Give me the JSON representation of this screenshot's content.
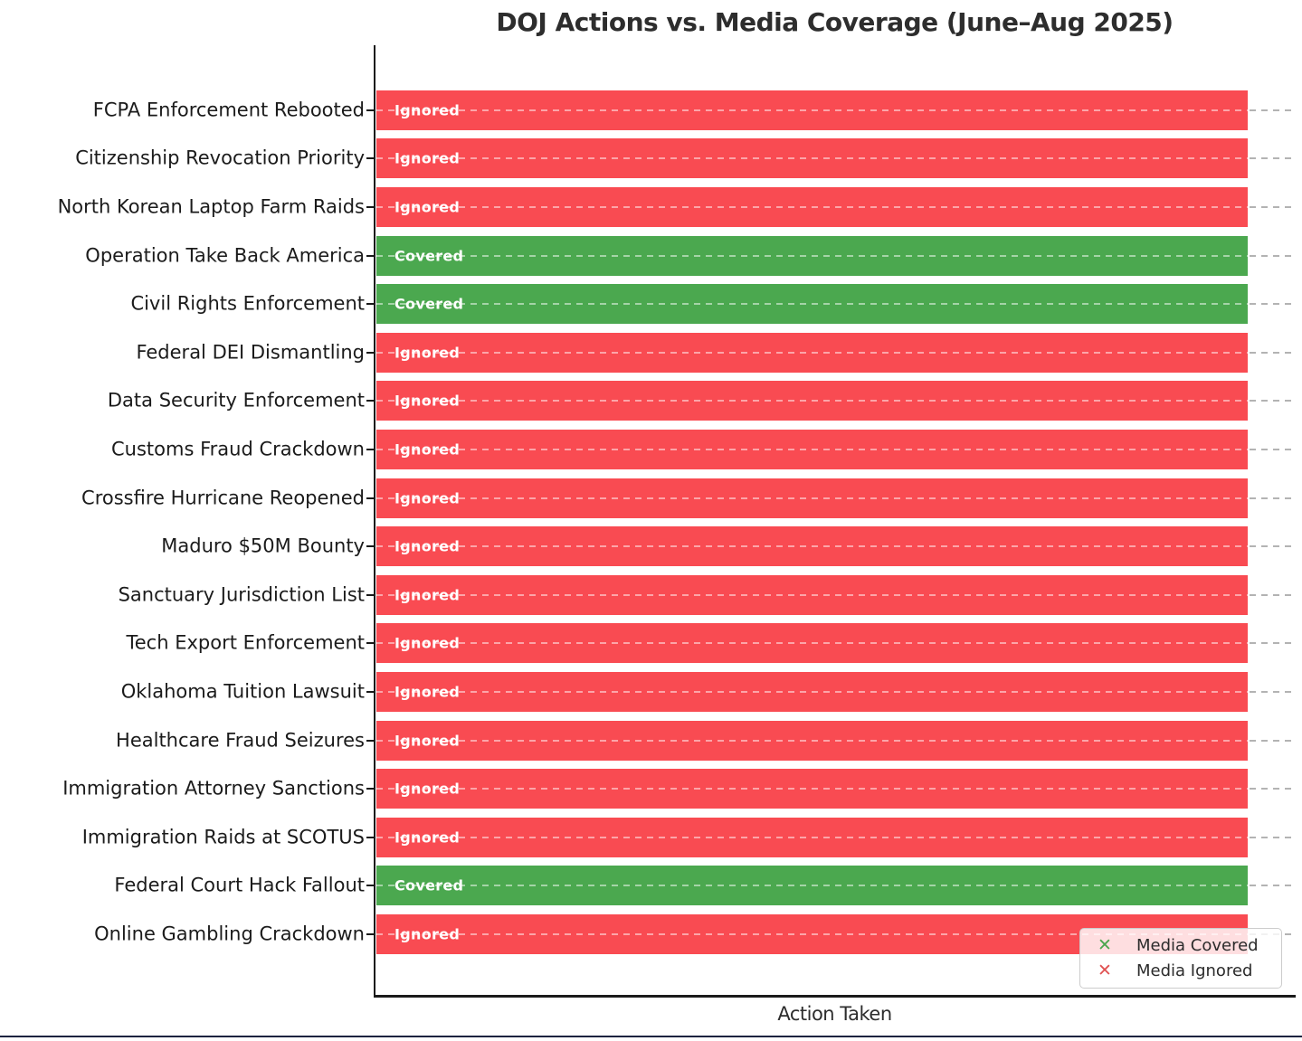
{
  "title": "DOJ Actions vs. Media Coverage (June–Aug 2025)",
  "xlabel": "Action Taken",
  "colors": {
    "covered": "#4ba84f",
    "ignored": "#f94b52",
    "legend_covered_marker": "#4aa64e",
    "legend_ignored_marker": "#e05252",
    "axis": "#1a1a1a",
    "gridline": "#b3b3b3",
    "bottom_edge": "#1c2340"
  },
  "legend": {
    "position": "lower right",
    "items": [
      {
        "label": "Media Covered",
        "marker": "x",
        "status": "covered"
      },
      {
        "label": "Media Ignored",
        "marker": "x",
        "status": "ignored"
      }
    ]
  },
  "chart_data": {
    "type": "bar",
    "orientation": "horizontal",
    "title": "DOJ Actions vs. Media Coverage (June–Aug 2025)",
    "xlabel": "Action Taken",
    "grid": "dashed horizontal lines per category",
    "legend_position": "lower right",
    "note": "All bars have equal length; color/label encode media coverage status",
    "bars": [
      {
        "category": "FCPA Enforcement Rebooted",
        "status": "Ignored",
        "value": 1
      },
      {
        "category": "Citizenship Revocation Priority",
        "status": "Ignored",
        "value": 1
      },
      {
        "category": "North Korean Laptop Farm Raids",
        "status": "Ignored",
        "value": 1
      },
      {
        "category": "Operation Take Back America",
        "status": "Covered",
        "value": 1
      },
      {
        "category": "Civil Rights Enforcement",
        "status": "Covered",
        "value": 1
      },
      {
        "category": "Federal DEI Dismantling",
        "status": "Ignored",
        "value": 1
      },
      {
        "category": "Data Security Enforcement",
        "status": "Ignored",
        "value": 1
      },
      {
        "category": "Customs Fraud Crackdown",
        "status": "Ignored",
        "value": 1
      },
      {
        "category": "Crossfire Hurricane Reopened",
        "status": "Ignored",
        "value": 1
      },
      {
        "category": "Maduro $50M Bounty",
        "status": "Ignored",
        "value": 1
      },
      {
        "category": "Sanctuary Jurisdiction List",
        "status": "Ignored",
        "value": 1
      },
      {
        "category": "Tech Export Enforcement",
        "status": "Ignored",
        "value": 1
      },
      {
        "category": "Oklahoma Tuition Lawsuit",
        "status": "Ignored",
        "value": 1
      },
      {
        "category": "Healthcare Fraud Seizures",
        "status": "Ignored",
        "value": 1
      },
      {
        "category": "Immigration Attorney Sanctions",
        "status": "Ignored",
        "value": 1
      },
      {
        "category": "Immigration Raids at SCOTUS",
        "status": "Ignored",
        "value": 1
      },
      {
        "category": "Federal Court Hack Fallout",
        "status": "Covered",
        "value": 1
      },
      {
        "category": "Online Gambling Crackdown",
        "status": "Ignored",
        "value": 1
      }
    ]
  }
}
